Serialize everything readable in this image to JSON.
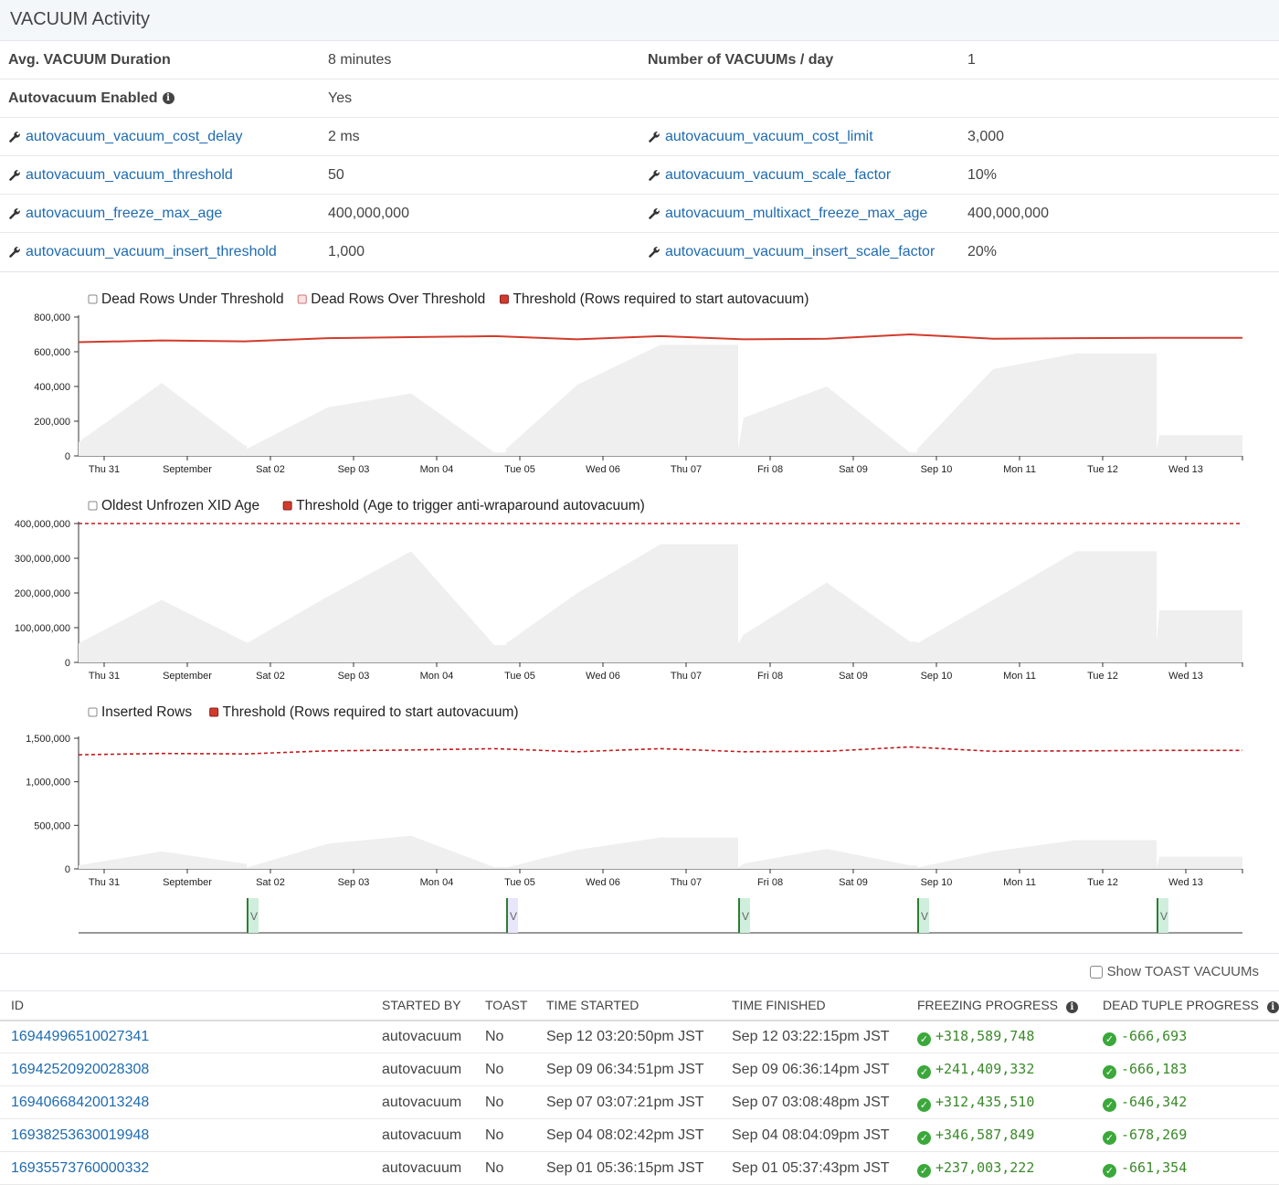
{
  "panel": {
    "title": "VACUUM Activity"
  },
  "stats": {
    "avg_duration_label": "Avg. VACUUM Duration",
    "avg_duration_value": "8 minutes",
    "per_day_label": "Number of VACUUMs / day",
    "per_day_value": "1",
    "autovac_enabled_label": "Autovacuum Enabled",
    "autovac_enabled_value": "Yes",
    "settings": [
      {
        "name": "autovacuum_vacuum_cost_delay",
        "value": "2 ms"
      },
      {
        "name": "autovacuum_vacuum_cost_limit",
        "value": "3,000"
      },
      {
        "name": "autovacuum_vacuum_threshold",
        "value": "50"
      },
      {
        "name": "autovacuum_vacuum_scale_factor",
        "value": "10%"
      },
      {
        "name": "autovacuum_freeze_max_age",
        "value": "400,000,000"
      },
      {
        "name": "autovacuum_multixact_freeze_max_age",
        "value": "400,000,000"
      },
      {
        "name": "autovacuum_vacuum_insert_threshold",
        "value": "1,000"
      },
      {
        "name": "autovacuum_vacuum_insert_scale_factor",
        "value": "20%"
      }
    ]
  },
  "colors": {
    "area": "#efefef",
    "threshold_red": "#d23b2b",
    "dashed_red": "#c21a1a",
    "link": "#1f6bb0",
    "marker_green": "#cfeedd",
    "marker_line": "#2e7d32",
    "marker_purple": "#e7e6fb"
  },
  "x_ticks": [
    "Thu 31",
    "September",
    "Sat 02",
    "Sep 03",
    "Mon 04",
    "Tue 05",
    "Wed 06",
    "Thu 07",
    "Fri 08",
    "Sat 09",
    "Sep 10",
    "Mon 11",
    "Tue 12",
    "Wed 13"
  ],
  "chart_data": [
    {
      "type": "area",
      "legend": [
        "Dead Rows Under Threshold",
        "Dead Rows Over Threshold",
        "Threshold (Rows required to start autovacuum)"
      ],
      "ylim": [
        0,
        800000
      ],
      "yticks": [
        "0",
        "200,000",
        "400,000",
        "600,000",
        "800,000"
      ],
      "ytick_values": [
        0,
        200000,
        400000,
        600000,
        800000
      ],
      "x": [
        "2023-08-31",
        "2023-09-01",
        "2023-09-02",
        "2023-09-03",
        "2023-09-04",
        "2023-09-05",
        "2023-09-06",
        "2023-09-07",
        "2023-09-08",
        "2023-09-09",
        "2023-09-10",
        "2023-09-11",
        "2023-09-12",
        "2023-09-13"
      ],
      "series": [
        {
          "name": "Dead Rows Under Threshold",
          "values": [
            80000,
            420000,
            60000,
            280000,
            360000,
            20000,
            410000,
            640000,
            220000,
            400000,
            20000,
            500000,
            590000,
            120000
          ]
        },
        {
          "name": "Threshold (Rows required to start autovacuum)",
          "values": [
            655000,
            665000,
            660000,
            678000,
            684000,
            690000,
            672000,
            690000,
            672000,
            675000,
            700000,
            675000,
            678000,
            680000
          ]
        }
      ]
    },
    {
      "type": "area",
      "legend": [
        "Oldest Unfrozen XID Age",
        "Threshold (Age to trigger anti-wraparound autovacuum)"
      ],
      "ylim": [
        0,
        400000000
      ],
      "yticks": [
        "0",
        "100,000,000",
        "200,000,000",
        "300,000,000",
        "400,000,000"
      ],
      "ytick_values": [
        0,
        100000000,
        200000000,
        300000000,
        400000000
      ],
      "x": [
        "2023-08-31",
        "2023-09-01",
        "2023-09-02",
        "2023-09-03",
        "2023-09-04",
        "2023-09-05",
        "2023-09-06",
        "2023-09-07",
        "2023-09-08",
        "2023-09-09",
        "2023-09-10",
        "2023-09-11",
        "2023-09-12",
        "2023-09-13"
      ],
      "series": [
        {
          "name": "Oldest Unfrozen XID Age",
          "values": [
            55000000,
            180000000,
            60000000,
            190000000,
            320000000,
            50000000,
            200000000,
            340000000,
            80000000,
            230000000,
            60000000,
            180000000,
            320000000,
            150000000
          ]
        },
        {
          "name": "Threshold (Age to trigger anti-wraparound autovacuum)",
          "values": [
            400000000,
            400000000,
            400000000,
            400000000,
            400000000,
            400000000,
            400000000,
            400000000,
            400000000,
            400000000,
            400000000,
            400000000,
            400000000,
            400000000
          ]
        }
      ]
    },
    {
      "type": "area",
      "legend": [
        "Inserted Rows",
        "Threshold (Rows required to start autovacuum)"
      ],
      "ylim": [
        0,
        1500000
      ],
      "yticks": [
        "0",
        "500,000",
        "1,000,000",
        "1,500,000"
      ],
      "ytick_values": [
        0,
        500000,
        1000000,
        1500000
      ],
      "x": [
        "2023-08-31",
        "2023-09-01",
        "2023-09-02",
        "2023-09-03",
        "2023-09-04",
        "2023-09-05",
        "2023-09-06",
        "2023-09-07",
        "2023-09-08",
        "2023-09-09",
        "2023-09-10",
        "2023-09-11",
        "2023-09-12",
        "2023-09-13"
      ],
      "series": [
        {
          "name": "Inserted Rows",
          "values": [
            40000,
            200000,
            60000,
            290000,
            380000,
            20000,
            220000,
            360000,
            60000,
            230000,
            40000,
            200000,
            330000,
            140000
          ]
        },
        {
          "name": "Threshold (Rows required to start autovacuum)",
          "values": [
            1310000,
            1325000,
            1320000,
            1355000,
            1365000,
            1380000,
            1345000,
            1380000,
            1345000,
            1350000,
            1400000,
            1350000,
            1355000,
            1360000
          ]
        }
      ]
    }
  ],
  "vacuum_markers": [
    {
      "label": "V",
      "kind": "green"
    },
    {
      "label": "V",
      "kind": "purple"
    },
    {
      "label": "V",
      "kind": "green"
    },
    {
      "label": "V",
      "kind": "green"
    },
    {
      "label": "V",
      "kind": "green"
    }
  ],
  "toast_toggle": {
    "label": "Show TOAST VACUUMs"
  },
  "table": {
    "headers": [
      "ID",
      "STARTED BY",
      "TOAST",
      "TIME STARTED",
      "TIME FINISHED",
      "FREEZING PROGRESS",
      "DEAD TUPLE PROGRESS"
    ],
    "rows": [
      {
        "id": "16944996510027341",
        "started_by": "autovacuum",
        "toast": "No",
        "started": "Sep 12 03:20:50pm JST",
        "finished": "Sep 12 03:22:15pm JST",
        "freezing": "+318,589,748",
        "dead": "-666,693"
      },
      {
        "id": "16942520920028308",
        "started_by": "autovacuum",
        "toast": "No",
        "started": "Sep 09 06:34:51pm JST",
        "finished": "Sep 09 06:36:14pm JST",
        "freezing": "+241,409,332",
        "dead": "-666,183"
      },
      {
        "id": "16940668420013248",
        "started_by": "autovacuum",
        "toast": "No",
        "started": "Sep 07 03:07:21pm JST",
        "finished": "Sep 07 03:08:48pm JST",
        "freezing": "+312,435,510",
        "dead": "-646,342"
      },
      {
        "id": "16938253630019948",
        "started_by": "autovacuum",
        "toast": "No",
        "started": "Sep 04 08:02:42pm JST",
        "finished": "Sep 04 08:04:09pm JST",
        "freezing": "+346,587,849",
        "dead": "-678,269"
      },
      {
        "id": "16935573760000332",
        "started_by": "autovacuum",
        "toast": "No",
        "started": "Sep 01 05:36:15pm JST",
        "finished": "Sep 01 05:37:43pm JST",
        "freezing": "+237,003,222",
        "dead": "-661,354"
      }
    ]
  }
}
